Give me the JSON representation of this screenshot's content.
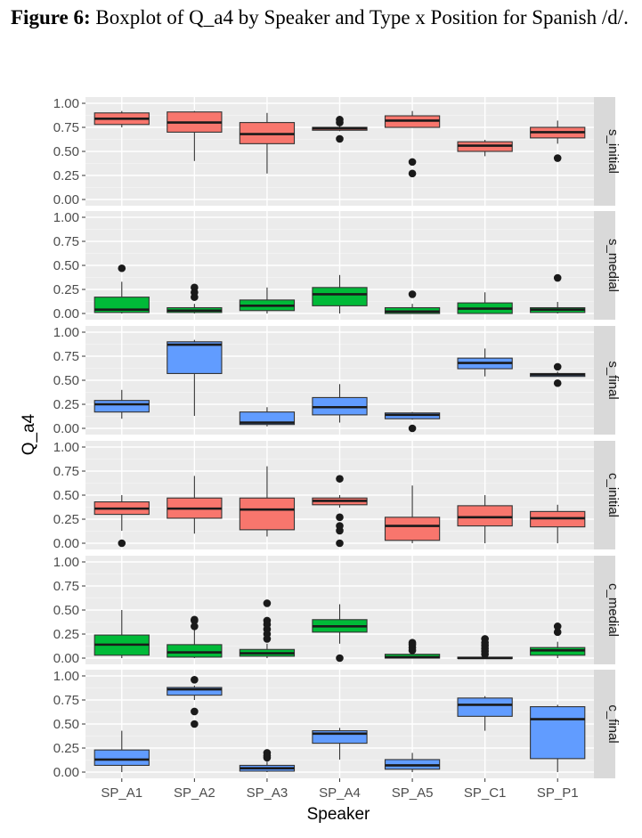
{
  "caption": {
    "label": "Figure 6:",
    "text": "Boxplot of Q_a4 by Speaker and Type x Position for Spanish /d/."
  },
  "chart_data": {
    "type": "boxplot",
    "xlabel": "Speaker",
    "ylabel": "Q_a4",
    "categories": [
      "SP_A1",
      "SP_A2",
      "SP_A3",
      "SP_A4",
      "SP_A5",
      "SP_C1",
      "SP_P1"
    ],
    "ylim": [
      0,
      1
    ],
    "yticks": [
      "0.00",
      "0.25",
      "0.50",
      "0.75",
      "1.00"
    ],
    "grid": true,
    "legend": "none",
    "facets": [
      {
        "label": "s_initial",
        "color": "#F8766D",
        "boxes": [
          {
            "min": 0.75,
            "q1": 0.78,
            "median": 0.84,
            "q3": 0.9,
            "max": 0.92,
            "outliers": []
          },
          {
            "min": 0.4,
            "q1": 0.7,
            "median": 0.8,
            "q3": 0.91,
            "max": 0.92,
            "outliers": []
          },
          {
            "min": 0.27,
            "q1": 0.58,
            "median": 0.68,
            "q3": 0.8,
            "max": 0.9,
            "outliers": []
          },
          {
            "min": 0.71,
            "q1": 0.72,
            "median": 0.74,
            "q3": 0.75,
            "max": 0.77,
            "outliers": [
              0.63,
              0.8,
              0.83
            ]
          },
          {
            "min": 0.75,
            "q1": 0.75,
            "median": 0.82,
            "q3": 0.87,
            "max": 0.92,
            "outliers": [
              0.27,
              0.39
            ]
          },
          {
            "min": 0.45,
            "q1": 0.5,
            "median": 0.56,
            "q3": 0.6,
            "max": 0.62,
            "outliers": []
          },
          {
            "min": 0.58,
            "q1": 0.64,
            "median": 0.7,
            "q3": 0.75,
            "max": 0.82,
            "outliers": [
              0.43
            ]
          }
        ]
      },
      {
        "label": "s_medial",
        "color": "#00BA38",
        "boxes": [
          {
            "min": 0.0,
            "q1": 0.01,
            "median": 0.04,
            "q3": 0.17,
            "max": 0.33,
            "outliers": [
              0.47
            ]
          },
          {
            "min": 0.0,
            "q1": 0.01,
            "median": 0.03,
            "q3": 0.06,
            "max": 0.1,
            "outliers": [
              0.17,
              0.22,
              0.27
            ]
          },
          {
            "min": 0.0,
            "q1": 0.03,
            "median": 0.08,
            "q3": 0.14,
            "max": 0.27,
            "outliers": []
          },
          {
            "min": 0.0,
            "q1": 0.08,
            "median": 0.2,
            "q3": 0.27,
            "max": 0.4,
            "outliers": []
          },
          {
            "min": 0.0,
            "q1": 0.0,
            "median": 0.02,
            "q3": 0.06,
            "max": 0.1,
            "outliers": [
              0.2
            ]
          },
          {
            "min": 0.0,
            "q1": 0.0,
            "median": 0.05,
            "q3": 0.11,
            "max": 0.22,
            "outliers": []
          },
          {
            "min": 0.0,
            "q1": 0.01,
            "median": 0.04,
            "q3": 0.06,
            "max": 0.12,
            "outliers": [
              0.37
            ]
          }
        ]
      },
      {
        "label": "s_final",
        "color": "#619CFF",
        "boxes": [
          {
            "min": 0.1,
            "q1": 0.17,
            "median": 0.25,
            "q3": 0.29,
            "max": 0.4,
            "outliers": []
          },
          {
            "min": 0.13,
            "q1": 0.57,
            "median": 0.87,
            "q3": 0.9,
            "max": 0.92,
            "outliers": []
          },
          {
            "min": 0.02,
            "q1": 0.04,
            "median": 0.06,
            "q3": 0.17,
            "max": 0.22,
            "outliers": []
          },
          {
            "min": 0.06,
            "q1": 0.14,
            "median": 0.22,
            "q3": 0.32,
            "max": 0.46,
            "outliers": []
          },
          {
            "min": 0.09,
            "q1": 0.1,
            "median": 0.14,
            "q3": 0.16,
            "max": 0.17,
            "outliers": [
              0.0
            ]
          },
          {
            "min": 0.54,
            "q1": 0.62,
            "median": 0.68,
            "q3": 0.73,
            "max": 0.83,
            "outliers": []
          },
          {
            "min": 0.54,
            "q1": 0.54,
            "median": 0.56,
            "q3": 0.57,
            "max": 0.59,
            "outliers": [
              0.47,
              0.64
            ]
          }
        ]
      },
      {
        "label": "c_initial",
        "color": "#F8766D",
        "boxes": [
          {
            "min": 0.13,
            "q1": 0.3,
            "median": 0.36,
            "q3": 0.43,
            "max": 0.5,
            "outliers": [
              0.0
            ]
          },
          {
            "min": 0.1,
            "q1": 0.26,
            "median": 0.36,
            "q3": 0.47,
            "max": 0.7,
            "outliers": []
          },
          {
            "min": 0.07,
            "q1": 0.14,
            "median": 0.35,
            "q3": 0.47,
            "max": 0.8,
            "outliers": []
          },
          {
            "min": 0.37,
            "q1": 0.4,
            "median": 0.44,
            "q3": 0.47,
            "max": 0.5,
            "outliers": [
              0.0,
              0.13,
              0.18,
              0.27,
              0.67
            ]
          },
          {
            "min": 0.0,
            "q1": 0.03,
            "median": 0.18,
            "q3": 0.27,
            "max": 0.6,
            "outliers": []
          },
          {
            "min": 0.0,
            "q1": 0.18,
            "median": 0.27,
            "q3": 0.39,
            "max": 0.5,
            "outliers": []
          },
          {
            "min": 0.0,
            "q1": 0.17,
            "median": 0.26,
            "q3": 0.33,
            "max": 0.4,
            "outliers": []
          }
        ]
      },
      {
        "label": "c_medial",
        "color": "#00BA38",
        "boxes": [
          {
            "min": 0.0,
            "q1": 0.03,
            "median": 0.14,
            "q3": 0.24,
            "max": 0.5,
            "outliers": []
          },
          {
            "min": 0.0,
            "q1": 0.01,
            "median": 0.06,
            "q3": 0.14,
            "max": 0.3,
            "outliers": [
              0.33,
              0.39,
              0.4
            ]
          },
          {
            "min": 0.0,
            "q1": 0.02,
            "median": 0.05,
            "q3": 0.09,
            "max": 0.15,
            "outliers": [
              0.2,
              0.25,
              0.3,
              0.35,
              0.39,
              0.57
            ]
          },
          {
            "min": 0.15,
            "q1": 0.27,
            "median": 0.33,
            "q3": 0.4,
            "max": 0.56,
            "outliers": [
              0.0
            ]
          },
          {
            "min": 0.0,
            "q1": 0.0,
            "median": 0.01,
            "q3": 0.04,
            "max": 0.05,
            "outliers": [
              0.08,
              0.11,
              0.14,
              0.16
            ]
          },
          {
            "min": 0.0,
            "q1": 0.0,
            "median": 0.0,
            "q3": 0.01,
            "max": 0.02,
            "outliers": [
              0.04,
              0.07,
              0.1,
              0.13,
              0.16,
              0.2
            ]
          },
          {
            "min": 0.0,
            "q1": 0.03,
            "median": 0.08,
            "q3": 0.11,
            "max": 0.17,
            "outliers": [
              0.27,
              0.33
            ]
          }
        ]
      },
      {
        "label": "c_final",
        "color": "#619CFF",
        "boxes": [
          {
            "min": 0.0,
            "q1": 0.07,
            "median": 0.13,
            "q3": 0.23,
            "max": 0.43,
            "outliers": []
          },
          {
            "min": 0.75,
            "q1": 0.8,
            "median": 0.86,
            "q3": 0.88,
            "max": 0.9,
            "outliers": [
              0.5,
              0.63,
              0.96
            ]
          },
          {
            "min": 0.0,
            "q1": 0.01,
            "median": 0.04,
            "q3": 0.07,
            "max": 0.11,
            "outliers": [
              0.15,
              0.17,
              0.2
            ]
          },
          {
            "min": 0.13,
            "q1": 0.3,
            "median": 0.4,
            "q3": 0.43,
            "max": 0.46,
            "outliers": []
          },
          {
            "min": 0.0,
            "q1": 0.03,
            "median": 0.07,
            "q3": 0.13,
            "max": 0.2,
            "outliers": []
          },
          {
            "min": 0.43,
            "q1": 0.58,
            "median": 0.7,
            "q3": 0.77,
            "max": 0.79,
            "outliers": []
          },
          {
            "min": 0.0,
            "q1": 0.14,
            "median": 0.55,
            "q3": 0.68,
            "max": 0.7,
            "outliers": []
          }
        ]
      }
    ]
  }
}
